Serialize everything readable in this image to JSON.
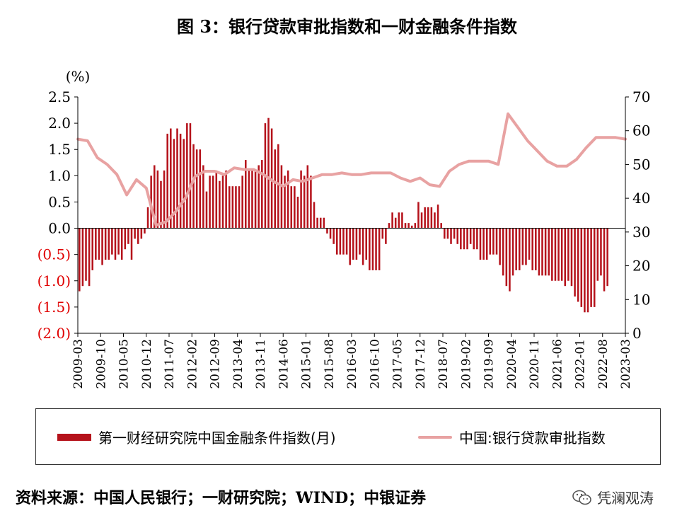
{
  "title": "图 3：银行贷款审批指数和一财金融条件指数",
  "source": "资料来源：中国人民银行；一财研究院；WIND；中银证券",
  "watermark": "凭澜观涛",
  "unit_label": "(%)",
  "colors": {
    "bar": "#b5121b",
    "line": "#e8a2a2",
    "negative_tick": "#e00000"
  },
  "chart_data": {
    "type": "bar+line",
    "x_tick_labels": [
      "2009-03",
      "2009-10",
      "2010-05",
      "2010-12",
      "2011-07",
      "2012-02",
      "2012-09",
      "2013-04",
      "2013-11",
      "2014-06",
      "2015-01",
      "2015-08",
      "2016-03",
      "2016-10",
      "2017-05",
      "2017-12",
      "2018-07",
      "2019-02",
      "2019-09",
      "2020-04",
      "2020-11",
      "2021-06",
      "2022-01",
      "2022-08",
      "2023-03"
    ],
    "left_axis": {
      "ylim": [
        -2.0,
        2.5
      ],
      "ticks": [
        "2.5",
        "2.0",
        "1.5",
        "1.0",
        "0.5",
        "0.0",
        "(0.5)",
        "(1.0)",
        "(1.5)",
        "(2.0)"
      ]
    },
    "right_axis": {
      "ylim": [
        0,
        70
      ],
      "ticks": [
        "70",
        "60",
        "50",
        "40",
        "30",
        "20",
        "10",
        "0"
      ]
    },
    "legend": [
      "第一财经研究院中国金融条件指数(月)",
      "中国:银行贷款审批指数"
    ],
    "series": [
      {
        "name": "第一财经研究院中国金融条件指数(月)",
        "type": "bar",
        "axis": "left",
        "frequency": "monthly",
        "start": "2009-03",
        "values": [
          -1.2,
          -1.1,
          -1.0,
          -1.1,
          -0.8,
          -0.6,
          -0.6,
          -0.7,
          -0.6,
          -0.6,
          -0.5,
          -0.6,
          -0.5,
          -0.6,
          -0.4,
          -0.3,
          -0.6,
          -0.2,
          -0.3,
          -0.2,
          -0.1,
          0.4,
          1.0,
          1.2,
          1.1,
          0.9,
          1.1,
          1.8,
          1.9,
          1.7,
          1.9,
          1.8,
          1.7,
          2.0,
          2.0,
          1.6,
          1.5,
          1.5,
          1.2,
          0.7,
          1.0,
          1.0,
          1.1,
          0.9,
          1.0,
          1.1,
          0.8,
          0.8,
          0.8,
          0.8,
          1.0,
          1.3,
          1.1,
          1.1,
          1.1,
          1.2,
          1.3,
          2.0,
          2.1,
          1.9,
          1.5,
          1.6,
          1.2,
          1.0,
          1.1,
          0.8,
          0.8,
          0.6,
          1.1,
          1.0,
          1.2,
          1.0,
          0.5,
          0.2,
          0.2,
          0.2,
          -0.1,
          -0.2,
          -0.3,
          -0.5,
          -0.5,
          -0.5,
          -0.5,
          -0.7,
          -0.6,
          -0.6,
          -0.5,
          -0.7,
          -0.6,
          -0.8,
          -0.8,
          -0.8,
          -0.8,
          -0.2,
          -0.3,
          0.1,
          0.3,
          0.2,
          0.3,
          0.3,
          0.1,
          0.1,
          0.05,
          0.1,
          0.5,
          0.3,
          0.4,
          0.4,
          0.4,
          0.3,
          0.45,
          0.1,
          -0.2,
          -0.2,
          -0.3,
          -0.2,
          -0.3,
          -0.4,
          -0.4,
          -0.4,
          -0.3,
          -0.4,
          -0.4,
          -0.6,
          -0.6,
          -0.6,
          -0.5,
          -0.5,
          -0.5,
          -0.7,
          -0.9,
          -1.1,
          -1.2,
          -0.9,
          -0.8,
          -0.8,
          -0.7,
          -0.7,
          -0.6,
          -0.8,
          -0.8,
          -0.9,
          -0.9,
          -0.9,
          -0.9,
          -1.0,
          -1.0,
          -1.0,
          -1.0,
          -1.1,
          -1.0,
          -1.1,
          -1.3,
          -1.4,
          -1.5,
          -1.6,
          -1.6,
          -1.5,
          -1.5,
          -1.0,
          -0.9,
          -1.2,
          -1.1
        ]
      },
      {
        "name": "中国:银行贷款审批指数",
        "type": "line",
        "axis": "right",
        "frequency": "quarterly",
        "start": "2009-03",
        "values": [
          57.5,
          57.0,
          52.0,
          50.0,
          47.0,
          41.0,
          45.5,
          43.0,
          32.0,
          33.0,
          36.0,
          40.0,
          46.5,
          48.0,
          48.0,
          47.0,
          49.0,
          48.5,
          48.5,
          47.0,
          45.0,
          43.5,
          45.5,
          45.0,
          46.0,
          47.0,
          47.0,
          47.5,
          47.0,
          47.0,
          47.5,
          47.5,
          47.5,
          46.0,
          45.0,
          46.0,
          44.0,
          43.5,
          48.0,
          50.0,
          51.0,
          51.0,
          51.0,
          50.0,
          65.0,
          61.0,
          57.0,
          54.0,
          51.0,
          49.5,
          49.5,
          51.5,
          55.0,
          58.0,
          58.0,
          58.0,
          57.5
        ]
      }
    ]
  }
}
